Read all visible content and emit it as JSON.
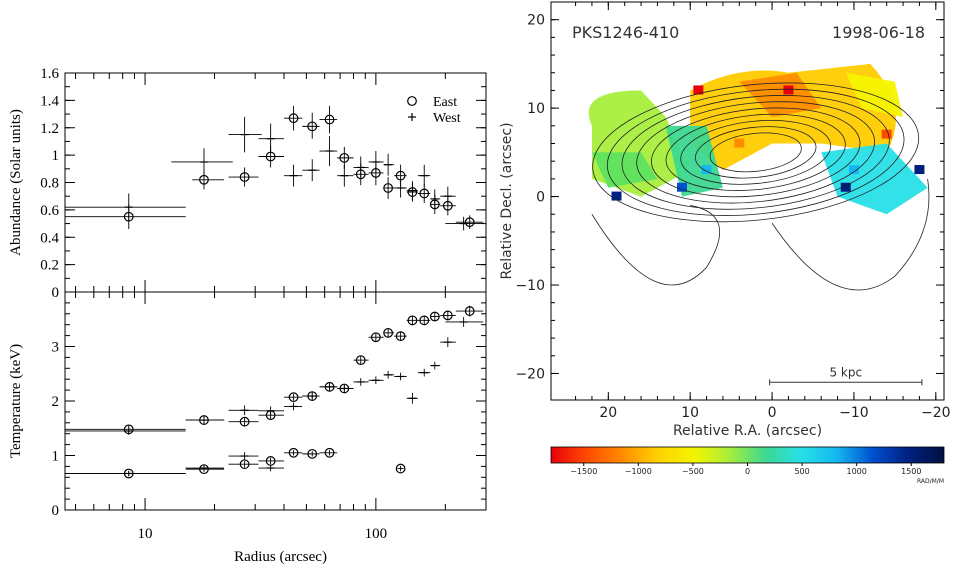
{
  "chart_data": [
    {
      "type": "scatter",
      "panel": "abundance",
      "ylabel": "Abundance (Solar units)",
      "xlabel": "Radius (arcsec)",
      "x_scale": "log",
      "xlim": [
        4.5,
        300
      ],
      "ylim": [
        0,
        1.6
      ],
      "yticks": [
        "0",
        "0.2",
        "0.4",
        "0.6",
        "0.8",
        "1",
        "1.2",
        "1.4",
        "1.6"
      ],
      "legend": {
        "position": "top-right",
        "entries": [
          "East",
          "West"
        ]
      },
      "series": [
        {
          "name": "East",
          "marker": "circle",
          "points": [
            {
              "x": 8.5,
              "y": 0.55,
              "xlo": 4.5,
              "xhi": 15,
              "ylo": 0.46,
              "yhi": 0.64
            },
            {
              "x": 18,
              "y": 0.82,
              "xlo": 16,
              "xhi": 22,
              "ylo": 0.75,
              "yhi": 0.89
            },
            {
              "x": 27,
              "y": 0.84,
              "xlo": 23,
              "xhi": 31,
              "ylo": 0.77,
              "yhi": 0.91
            },
            {
              "x": 35,
              "y": 0.99,
              "xlo": 31,
              "xhi": 40,
              "ylo": 0.91,
              "yhi": 1.07
            },
            {
              "x": 44,
              "y": 1.27,
              "xlo": 40,
              "xhi": 48,
              "ylo": 1.18,
              "yhi": 1.36
            },
            {
              "x": 53,
              "y": 1.21,
              "xlo": 48,
              "xhi": 57,
              "ylo": 1.12,
              "yhi": 1.31
            },
            {
              "x": 63,
              "y": 1.26,
              "xlo": 57,
              "xhi": 68,
              "ylo": 1.16,
              "yhi": 1.36
            },
            {
              "x": 73,
              "y": 0.98,
              "xlo": 68,
              "xhi": 80,
              "ylo": 0.9,
              "yhi": 1.06
            },
            {
              "x": 86,
              "y": 0.86,
              "xlo": 80,
              "xhi": 93,
              "ylo": 0.78,
              "yhi": 0.94
            },
            {
              "x": 100,
              "y": 0.87,
              "xlo": 93,
              "xhi": 108,
              "ylo": 0.78,
              "yhi": 0.96
            },
            {
              "x": 113,
              "y": 0.76,
              "xlo": 108,
              "xhi": 120,
              "ylo": 0.68,
              "yhi": 0.84
            },
            {
              "x": 128,
              "y": 0.85,
              "xlo": 120,
              "xhi": 136,
              "ylo": 0.77,
              "yhi": 0.93
            },
            {
              "x": 144,
              "y": 0.73,
              "xlo": 136,
              "xhi": 152,
              "ylo": 0.66,
              "yhi": 0.8
            },
            {
              "x": 162,
              "y": 0.72,
              "xlo": 152,
              "xhi": 172,
              "ylo": 0.65,
              "yhi": 0.79
            },
            {
              "x": 180,
              "y": 0.64,
              "xlo": 172,
              "xhi": 190,
              "ylo": 0.57,
              "yhi": 0.71
            },
            {
              "x": 205,
              "y": 0.63,
              "xlo": 190,
              "xhi": 222,
              "ylo": 0.56,
              "yhi": 0.7
            },
            {
              "x": 255,
              "y": 0.51,
              "xlo": 222,
              "xhi": 292,
              "ylo": 0.46,
              "yhi": 0.56
            }
          ]
        },
        {
          "name": "West",
          "marker": "plus",
          "points": [
            {
              "x": 8.5,
              "y": 0.62,
              "xlo": 4.5,
              "xhi": 15,
              "ylo": 0.52,
              "yhi": 0.72
            },
            {
              "x": 18,
              "y": 0.95,
              "xlo": 13,
              "xhi": 24,
              "ylo": 0.85,
              "yhi": 1.05
            },
            {
              "x": 27,
              "y": 1.15,
              "xlo": 23,
              "xhi": 32,
              "ylo": 1.02,
              "yhi": 1.28
            },
            {
              "x": 35,
              "y": 1.12,
              "xlo": 31,
              "xhi": 40,
              "ylo": 1.01,
              "yhi": 1.23
            },
            {
              "x": 44,
              "y": 0.85,
              "xlo": 40,
              "xhi": 48,
              "ylo": 0.77,
              "yhi": 0.93
            },
            {
              "x": 53,
              "y": 0.89,
              "xlo": 48,
              "xhi": 57,
              "ylo": 0.81,
              "yhi": 0.97
            },
            {
              "x": 63,
              "y": 1.03,
              "xlo": 57,
              "xhi": 68,
              "ylo": 0.92,
              "yhi": 1.14
            },
            {
              "x": 73,
              "y": 0.85,
              "xlo": 68,
              "xhi": 80,
              "ylo": 0.77,
              "yhi": 0.93
            },
            {
              "x": 86,
              "y": 0.91,
              "xlo": 80,
              "xhi": 93,
              "ylo": 0.83,
              "yhi": 0.99
            },
            {
              "x": 100,
              "y": 0.95,
              "xlo": 93,
              "xhi": 108,
              "ylo": 0.87,
              "yhi": 1.03
            },
            {
              "x": 113,
              "y": 0.93,
              "xlo": 108,
              "xhi": 120,
              "ylo": 0.85,
              "yhi": 1.01
            },
            {
              "x": 128,
              "y": 0.76,
              "xlo": 120,
              "xhi": 136,
              "ylo": 0.69,
              "yhi": 0.83
            },
            {
              "x": 144,
              "y": 0.74,
              "xlo": 136,
              "xhi": 152,
              "ylo": 0.67,
              "yhi": 0.81
            },
            {
              "x": 162,
              "y": 0.85,
              "xlo": 152,
              "xhi": 172,
              "ylo": 0.77,
              "yhi": 0.93
            },
            {
              "x": 180,
              "y": 0.68,
              "xlo": 172,
              "xhi": 190,
              "ylo": 0.61,
              "yhi": 0.75
            },
            {
              "x": 205,
              "y": 0.7,
              "xlo": 190,
              "xhi": 222,
              "ylo": 0.63,
              "yhi": 0.77
            },
            {
              "x": 240,
              "y": 0.5,
              "xlo": 200,
              "xhi": 292,
              "ylo": 0.45,
              "yhi": 0.55
            }
          ]
        }
      ]
    },
    {
      "type": "scatter",
      "panel": "temperature",
      "ylabel": "Temperature (keV)",
      "xlabel": "Radius (arcsec)",
      "x_scale": "log",
      "xlim": [
        4.5,
        300
      ],
      "ylim": [
        0,
        4
      ],
      "yticks": [
        "0",
        "1",
        "2",
        "3"
      ],
      "xticks": [
        "10",
        "100"
      ],
      "series": [
        {
          "name": "East",
          "marker": "circle",
          "points": [
            {
              "x": 8.5,
              "y": 1.48,
              "xlo": 4.5,
              "xhi": 15,
              "ylo": 1.4,
              "yhi": 1.56
            },
            {
              "x": 18,
              "y": 1.65,
              "xlo": 15,
              "xhi": 22,
              "ylo": 1.59,
              "yhi": 1.71
            },
            {
              "x": 27,
              "y": 1.62,
              "xlo": 23,
              "xhi": 31,
              "ylo": 1.55,
              "yhi": 1.69
            },
            {
              "x": 35,
              "y": 1.74,
              "xlo": 31,
              "xhi": 40,
              "ylo": 1.67,
              "yhi": 1.81
            },
            {
              "x": 44,
              "y": 2.07,
              "xlo": 40,
              "xhi": 48,
              "ylo": 2.01,
              "yhi": 2.13
            },
            {
              "x": 53,
              "y": 2.09,
              "xlo": 48,
              "xhi": 57,
              "ylo": 2.03,
              "yhi": 2.15
            },
            {
              "x": 63,
              "y": 2.26,
              "xlo": 57,
              "xhi": 68,
              "ylo": 2.2,
              "yhi": 2.32
            },
            {
              "x": 73,
              "y": 2.23,
              "xlo": 68,
              "xhi": 80,
              "ylo": 2.17,
              "yhi": 2.29
            },
            {
              "x": 86,
              "y": 2.75,
              "xlo": 80,
              "xhi": 93,
              "ylo": 2.68,
              "yhi": 2.82
            },
            {
              "x": 100,
              "y": 3.17,
              "xlo": 93,
              "xhi": 108,
              "ylo": 3.09,
              "yhi": 3.25
            },
            {
              "x": 113,
              "y": 3.25,
              "xlo": 108,
              "xhi": 120,
              "ylo": 3.16,
              "yhi": 3.34
            },
            {
              "x": 128,
              "y": 3.19,
              "xlo": 120,
              "xhi": 136,
              "ylo": 3.11,
              "yhi": 3.27
            },
            {
              "x": 144,
              "y": 3.48,
              "xlo": 136,
              "xhi": 152,
              "ylo": 3.39,
              "yhi": 3.57
            },
            {
              "x": 162,
              "y": 3.48,
              "xlo": 152,
              "xhi": 172,
              "ylo": 3.39,
              "yhi": 3.57
            },
            {
              "x": 180,
              "y": 3.55,
              "xlo": 172,
              "xhi": 190,
              "ylo": 3.46,
              "yhi": 3.64
            },
            {
              "x": 205,
              "y": 3.57,
              "xlo": 190,
              "xhi": 222,
              "ylo": 3.48,
              "yhi": 3.66
            },
            {
              "x": 255,
              "y": 3.65,
              "xlo": 222,
              "xhi": 292,
              "ylo": 3.55,
              "yhi": 3.75
            },
            {
              "x": 8.5,
              "y": 0.67,
              "xlo": 4.5,
              "xhi": 15,
              "ylo": 0.62,
              "yhi": 0.72
            },
            {
              "x": 18,
              "y": 0.75,
              "xlo": 15,
              "xhi": 22,
              "ylo": 0.7,
              "yhi": 0.8
            },
            {
              "x": 27,
              "y": 0.84,
              "xlo": 23,
              "xhi": 31,
              "ylo": 0.78,
              "yhi": 0.9
            },
            {
              "x": 35,
              "y": 0.9,
              "xlo": 31,
              "xhi": 40,
              "ylo": 0.84,
              "yhi": 0.96
            },
            {
              "x": 44,
              "y": 1.05,
              "xlo": 40,
              "xhi": 48,
              "ylo": 1.0,
              "yhi": 1.1
            },
            {
              "x": 53,
              "y": 1.03,
              "xlo": 48,
              "xhi": 57,
              "ylo": 0.98,
              "yhi": 1.08
            },
            {
              "x": 63,
              "y": 1.05,
              "xlo": 57,
              "xhi": 68,
              "ylo": 1.0,
              "yhi": 1.1
            },
            {
              "x": 128,
              "y": 0.76,
              "xlo": 124,
              "xhi": 132,
              "ylo": 0.71,
              "yhi": 0.81
            }
          ]
        },
        {
          "name": "West",
          "marker": "plus",
          "points": [
            {
              "x": 8.5,
              "y": 1.45,
              "xlo": 4.5,
              "xhi": 15,
              "ylo": 1.38,
              "yhi": 1.52
            },
            {
              "x": 18,
              "y": 1.65,
              "xlo": 15,
              "xhi": 22,
              "ylo": 1.58,
              "yhi": 1.72
            },
            {
              "x": 27,
              "y": 1.83,
              "xlo": 23,
              "xhi": 31,
              "ylo": 1.74,
              "yhi": 1.92
            },
            {
              "x": 35,
              "y": 1.82,
              "xlo": 31,
              "xhi": 40,
              "ylo": 1.74,
              "yhi": 1.9
            },
            {
              "x": 44,
              "y": 1.9,
              "xlo": 40,
              "xhi": 48,
              "ylo": 1.83,
              "yhi": 1.97
            },
            {
              "x": 53,
              "y": 2.09,
              "xlo": 48,
              "xhi": 57,
              "ylo": 2.02,
              "yhi": 2.16
            },
            {
              "x": 63,
              "y": 2.26,
              "xlo": 57,
              "xhi": 68,
              "ylo": 2.19,
              "yhi": 2.33
            },
            {
              "x": 73,
              "y": 2.23,
              "xlo": 68,
              "xhi": 80,
              "ylo": 2.16,
              "yhi": 2.3
            },
            {
              "x": 86,
              "y": 2.35,
              "xlo": 80,
              "xhi": 93,
              "ylo": 2.28,
              "yhi": 2.42
            },
            {
              "x": 100,
              "y": 2.38,
              "xlo": 93,
              "xhi": 108,
              "ylo": 2.31,
              "yhi": 2.45
            },
            {
              "x": 113,
              "y": 2.48,
              "xlo": 108,
              "xhi": 120,
              "ylo": 2.41,
              "yhi": 2.55
            },
            {
              "x": 128,
              "y": 2.45,
              "xlo": 120,
              "xhi": 136,
              "ylo": 2.38,
              "yhi": 2.52
            },
            {
              "x": 144,
              "y": 2.05,
              "xlo": 136,
              "xhi": 152,
              "ylo": 1.95,
              "yhi": 2.15
            },
            {
              "x": 162,
              "y": 2.52,
              "xlo": 152,
              "xhi": 172,
              "ylo": 2.45,
              "yhi": 2.59
            },
            {
              "x": 180,
              "y": 2.65,
              "xlo": 172,
              "xhi": 190,
              "ylo": 2.58,
              "yhi": 2.72
            },
            {
              "x": 205,
              "y": 3.08,
              "xlo": 190,
              "xhi": 222,
              "ylo": 2.99,
              "yhi": 3.17
            },
            {
              "x": 240,
              "y": 3.45,
              "xlo": 200,
              "xhi": 292,
              "ylo": 3.36,
              "yhi": 3.54
            },
            {
              "x": 8.5,
              "y": 0.67,
              "xlo": 4.5,
              "xhi": 15,
              "ylo": 0.62,
              "yhi": 0.72
            },
            {
              "x": 18,
              "y": 0.77,
              "xlo": 15,
              "xhi": 22,
              "ylo": 0.72,
              "yhi": 0.82
            },
            {
              "x": 27,
              "y": 0.99,
              "xlo": 23,
              "xhi": 31,
              "ylo": 0.92,
              "yhi": 1.06
            },
            {
              "x": 35,
              "y": 0.77,
              "xlo": 31,
              "xhi": 40,
              "ylo": 0.71,
              "yhi": 0.83
            }
          ]
        }
      ]
    },
    {
      "type": "heatmap",
      "panel": "velocity-map",
      "title_left": "PKS1246-410",
      "title_right": "1998-06-18",
      "xlabel": "Relative R.A. (arcsec)",
      "ylabel": "Relative Decl. (arcsec)",
      "xlim": [
        27,
        -21
      ],
      "ylim": [
        -23,
        22
      ],
      "xticks": [
        "20",
        "10",
        "0",
        "−10",
        "−20"
      ],
      "yticks": [
        "20",
        "10",
        "0",
        "−10",
        "−20"
      ],
      "scalebar_label": "5 kpc",
      "colorbar": {
        "ticks": [
          "−1500",
          "−1000",
          "−500",
          "0",
          "500",
          "1000",
          "1500"
        ],
        "unit": "RAD/M/M",
        "range": [
          -1800,
          1800
        ],
        "colors": [
          "#e8000a",
          "#ff4a00",
          "#ff8c00",
          "#ffd200",
          "#f4f400",
          "#a8ee3c",
          "#3cd890",
          "#28e0e8",
          "#14b8f0",
          "#0050d0",
          "#002080",
          "#001040"
        ]
      }
    }
  ]
}
